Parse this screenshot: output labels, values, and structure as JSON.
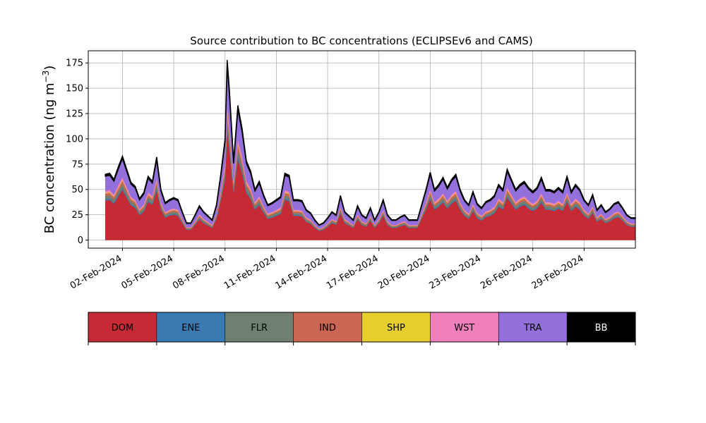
{
  "chart_data": {
    "type": "area",
    "stacked": true,
    "title": "Source contribution to BC concentrations (ECLIPSEv6 and CAMS)",
    "ylabel_main": "BC concentration (ng m",
    "ylabel_sup": "−3",
    "ylabel_close": ")",
    "xlabel": "",
    "grid": true,
    "ylim": [
      -8,
      187
    ],
    "xlim": [
      "2024-01-31",
      "2024-03-03"
    ],
    "y_ticks": [
      "0",
      "25",
      "50",
      "75",
      "100",
      "125",
      "150",
      "175"
    ],
    "y_tick_values": [
      0,
      25,
      50,
      75,
      100,
      125,
      150,
      175
    ],
    "x_ticks": [
      "02-Feb-2024",
      "05-Feb-2024",
      "08-Feb-2024",
      "11-Feb-2024",
      "14-Feb-2024",
      "17-Feb-2024",
      "20-Feb-2024",
      "23-Feb-2024",
      "26-Feb-2024",
      "29-Feb-2024"
    ],
    "x_tick_dates": [
      "2024-02-02",
      "2024-02-05",
      "2024-02-08",
      "2024-02-11",
      "2024-02-14",
      "2024-02-17",
      "2024-02-20",
      "2024-02-23",
      "2024-02-26",
      "2024-02-29"
    ],
    "total_profile": [
      [
        "2024-02-01",
        65
      ],
      [
        "2024-02-01T06",
        66
      ],
      [
        "2024-02-01T12",
        60
      ],
      [
        "2024-02-01T18",
        72
      ],
      [
        "2024-02-02",
        83
      ],
      [
        "2024-02-02T06",
        70
      ],
      [
        "2024-02-02T12",
        57
      ],
      [
        "2024-02-02T18",
        53
      ],
      [
        "2024-02-03",
        41
      ],
      [
        "2024-02-03T06",
        47
      ],
      [
        "2024-02-03T12",
        63
      ],
      [
        "2024-02-03T18",
        58
      ],
      [
        "2024-02-04",
        82
      ],
      [
        "2024-02-04T06",
        50
      ],
      [
        "2024-02-04T12",
        37
      ],
      [
        "2024-02-04T18",
        40
      ],
      [
        "2024-02-05",
        42
      ],
      [
        "2024-02-05T06",
        40
      ],
      [
        "2024-02-05T12",
        28
      ],
      [
        "2024-02-05T18",
        17
      ],
      [
        "2024-02-06",
        17
      ],
      [
        "2024-02-06T06",
        25
      ],
      [
        "2024-02-06T12",
        34
      ],
      [
        "2024-02-06T18",
        28
      ],
      [
        "2024-02-07",
        24
      ],
      [
        "2024-02-07T06",
        20
      ],
      [
        "2024-02-07T12",
        35
      ],
      [
        "2024-02-07T18",
        65
      ],
      [
        "2024-02-08",
        100
      ],
      [
        "2024-02-08T03",
        178
      ],
      [
        "2024-02-08T06",
        150
      ],
      [
        "2024-02-08T12",
        78
      ],
      [
        "2024-02-08T18",
        133
      ],
      [
        "2024-02-09",
        110
      ],
      [
        "2024-02-09T06",
        78
      ],
      [
        "2024-02-09T12",
        68
      ],
      [
        "2024-02-09T18",
        50
      ],
      [
        "2024-02-10",
        58
      ],
      [
        "2024-02-10T06",
        45
      ],
      [
        "2024-02-10T12",
        35
      ],
      [
        "2024-02-10T18",
        37
      ],
      [
        "2024-02-11",
        40
      ],
      [
        "2024-02-11T06",
        43
      ],
      [
        "2024-02-11T12",
        66
      ],
      [
        "2024-02-11T18",
        64
      ],
      [
        "2024-02-12",
        40
      ],
      [
        "2024-02-12T06",
        40
      ],
      [
        "2024-02-12T12",
        39
      ],
      [
        "2024-02-12T18",
        30
      ],
      [
        "2024-02-13",
        27
      ],
      [
        "2024-02-13T06",
        20
      ],
      [
        "2024-02-13T12",
        15
      ],
      [
        "2024-02-13T18",
        17
      ],
      [
        "2024-02-14",
        22
      ],
      [
        "2024-02-14T06",
        28
      ],
      [
        "2024-02-14T12",
        25
      ],
      [
        "2024-02-14T18",
        44
      ],
      [
        "2024-02-15",
        28
      ],
      [
        "2024-02-15T06",
        24
      ],
      [
        "2024-02-15T12",
        20
      ],
      [
        "2024-02-15T18",
        34
      ],
      [
        "2024-02-16",
        25
      ],
      [
        "2024-02-16T06",
        22
      ],
      [
        "2024-02-16T12",
        32
      ],
      [
        "2024-02-16T18",
        20
      ],
      [
        "2024-02-17",
        28
      ],
      [
        "2024-02-17T06",
        40
      ],
      [
        "2024-02-17T12",
        25
      ],
      [
        "2024-02-17T18",
        20
      ],
      [
        "2024-02-18",
        20
      ],
      [
        "2024-02-18T06",
        23
      ],
      [
        "2024-02-18T12",
        25
      ],
      [
        "2024-02-18T18",
        20
      ],
      [
        "2024-02-19",
        20
      ],
      [
        "2024-02-19T06",
        20
      ],
      [
        "2024-02-19T12",
        35
      ],
      [
        "2024-02-19T18",
        50
      ],
      [
        "2024-02-20",
        67
      ],
      [
        "2024-02-20T06",
        50
      ],
      [
        "2024-02-20T12",
        55
      ],
      [
        "2024-02-20T18",
        62
      ],
      [
        "2024-02-21",
        52
      ],
      [
        "2024-02-21T06",
        60
      ],
      [
        "2024-02-21T12",
        65
      ],
      [
        "2024-02-21T18",
        50
      ],
      [
        "2024-02-22",
        40
      ],
      [
        "2024-02-22T06",
        35
      ],
      [
        "2024-02-22T12",
        48
      ],
      [
        "2024-02-22T18",
        36
      ],
      [
        "2024-02-23",
        32
      ],
      [
        "2024-02-23T06",
        38
      ],
      [
        "2024-02-23T12",
        40
      ],
      [
        "2024-02-23T18",
        44
      ],
      [
        "2024-02-24",
        55
      ],
      [
        "2024-02-24T06",
        50
      ],
      [
        "2024-02-24T12",
        70
      ],
      [
        "2024-02-24T18",
        60
      ],
      [
        "2024-02-25",
        50
      ],
      [
        "2024-02-25T06",
        55
      ],
      [
        "2024-02-25T12",
        58
      ],
      [
        "2024-02-25T18",
        52
      ],
      [
        "2024-02-26",
        48
      ],
      [
        "2024-02-26T06",
        52
      ],
      [
        "2024-02-26T12",
        62
      ],
      [
        "2024-02-26T18",
        50
      ],
      [
        "2024-02-27",
        50
      ],
      [
        "2024-02-27T06",
        48
      ],
      [
        "2024-02-27T12",
        52
      ],
      [
        "2024-02-27T18",
        48
      ],
      [
        "2024-02-28",
        63
      ],
      [
        "2024-02-28T06",
        48
      ],
      [
        "2024-02-28T12",
        55
      ],
      [
        "2024-02-28T18",
        50
      ],
      [
        "2024-02-29",
        40
      ],
      [
        "2024-02-29T06",
        35
      ],
      [
        "2024-02-29T12",
        45
      ],
      [
        "2024-02-29T18",
        30
      ],
      [
        "2024-03-01",
        35
      ],
      [
        "2024-03-01T06",
        28
      ],
      [
        "2024-03-01T12",
        31
      ],
      [
        "2024-03-01T18",
        36
      ],
      [
        "2024-03-02",
        38
      ],
      [
        "2024-03-02T06",
        32
      ],
      [
        "2024-03-02T12",
        25
      ],
      [
        "2024-03-02T18",
        22
      ],
      [
        "2024-03-03",
        22
      ]
    ],
    "series": [
      {
        "name": "DOM",
        "color": "#c52a35",
        "fraction": 0.6
      },
      {
        "name": "ENE",
        "color": "#3a7ab3",
        "fraction": 0.02
      },
      {
        "name": "FLR",
        "color": "#6f8070",
        "fraction": 0.05
      },
      {
        "name": "IND",
        "color": "#cc6654",
        "fraction": 0.04
      },
      {
        "name": "SHP",
        "color": "#e6cf2c",
        "fraction": 0.01
      },
      {
        "name": "WST",
        "color": "#f07fbe",
        "fraction": 0.03
      },
      {
        "name": "TRA",
        "color": "#9370db",
        "fraction": 0.22
      },
      {
        "name": "BB",
        "color": "#000000",
        "fraction": 0.03
      }
    ]
  }
}
